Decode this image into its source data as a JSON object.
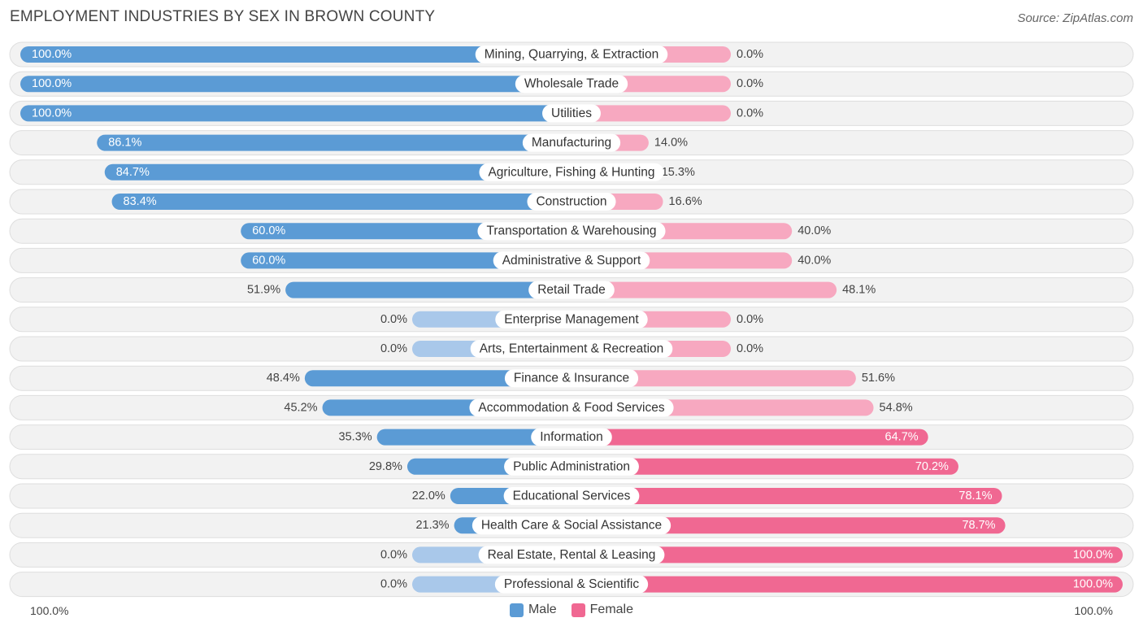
{
  "title": "EMPLOYMENT INDUSTRIES BY SEX IN BROWN COUNTY",
  "source": "Source: ZipAtlas.com",
  "colors": {
    "male": "#5b9bd5",
    "male_light": "#a9c8ea",
    "female": "#f06892",
    "female_light": "#f7a8c0",
    "row_bg": "#f2f2f2",
    "row_border": "#dedede"
  },
  "chart_data": {
    "type": "bar",
    "orientation": "horizontal-diverging",
    "categories": [
      "Mining, Quarrying, & Extraction",
      "Wholesale Trade",
      "Utilities",
      "Manufacturing",
      "Agriculture, Fishing & Hunting",
      "Construction",
      "Transportation & Warehousing",
      "Administrative & Support",
      "Retail Trade",
      "Enterprise Management",
      "Arts, Entertainment & Recreation",
      "Finance & Insurance",
      "Accommodation & Food Services",
      "Information",
      "Public Administration",
      "Educational Services",
      "Health Care & Social Assistance",
      "Real Estate, Rental & Leasing",
      "Professional & Scientific"
    ],
    "series": [
      {
        "name": "Male",
        "values": [
          100.0,
          100.0,
          100.0,
          86.1,
          84.7,
          83.4,
          60.0,
          60.0,
          51.9,
          0.0,
          0.0,
          48.4,
          45.2,
          35.3,
          29.8,
          22.0,
          21.3,
          0.0,
          0.0
        ],
        "labels": [
          "100.0%",
          "100.0%",
          "100.0%",
          "86.1%",
          "84.7%",
          "83.4%",
          "60.0%",
          "60.0%",
          "51.9%",
          "0.0%",
          "0.0%",
          "48.4%",
          "45.2%",
          "35.3%",
          "29.8%",
          "22.0%",
          "21.3%",
          "0.0%",
          "0.0%"
        ]
      },
      {
        "name": "Female",
        "values": [
          0.0,
          0.0,
          0.0,
          14.0,
          15.3,
          16.6,
          40.0,
          40.0,
          48.1,
          0.0,
          0.0,
          51.6,
          54.8,
          64.7,
          70.2,
          78.1,
          78.7,
          100.0,
          100.0
        ],
        "labels": [
          "0.0%",
          "0.0%",
          "0.0%",
          "14.0%",
          "15.3%",
          "16.6%",
          "40.0%",
          "40.0%",
          "48.1%",
          "0.0%",
          "0.0%",
          "51.6%",
          "54.8%",
          "64.7%",
          "70.2%",
          "78.1%",
          "78.7%",
          "100.0%",
          "100.0%"
        ]
      }
    ],
    "xlim": [
      -100,
      100
    ],
    "axis_labels": {
      "left": "100.0%",
      "right": "100.0%"
    },
    "legend": [
      "Male",
      "Female"
    ]
  }
}
